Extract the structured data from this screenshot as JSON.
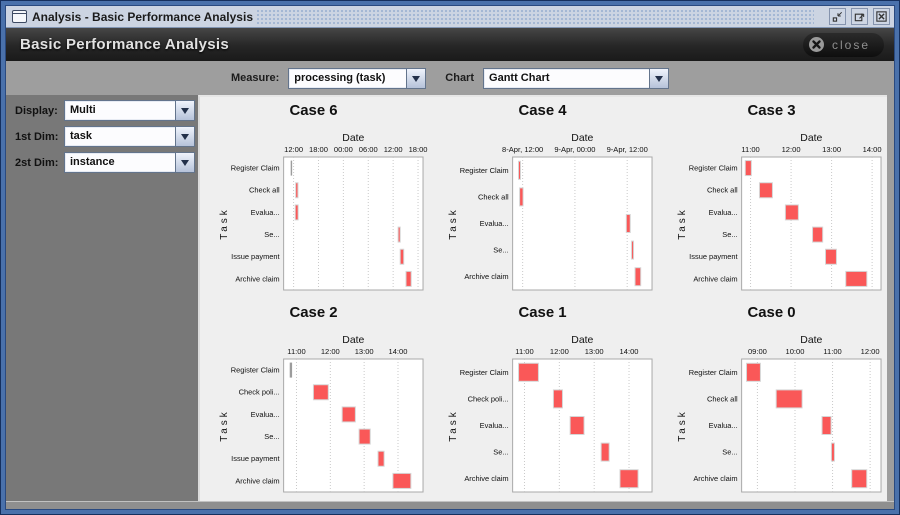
{
  "window": {
    "title": "Analysis - Basic Performance Analysis",
    "icons": {
      "app": "window-frame",
      "minimize": "iconify-arrow-to-small-square",
      "maximize": "arrow-to-large-square",
      "close": "boxed-x"
    }
  },
  "header": {
    "title": "Basic Performance Analysis",
    "close_label": "close",
    "close_icon": "circle-x"
  },
  "toolbar": {
    "measure_label": "Measure:",
    "measure_value": "processing (task)",
    "chart_label": "Chart",
    "chart_value": "Gantt Chart"
  },
  "sidebar": {
    "fields": [
      {
        "label": "Display:",
        "value": "Multi"
      },
      {
        "label": "1st Dim:",
        "value": "task"
      },
      {
        "label": "2st Dim:",
        "value": "instance"
      }
    ]
  },
  "colors": {
    "bar_red": "#FA5858",
    "bar_border": "#d6d6d6",
    "bar_gray": "#9c9c9c",
    "grid_line": "#c9c9c9",
    "plot_border": "#a8a8a8",
    "accent_blue": "#4a71ab"
  },
  "chart_data": [
    {
      "type": "gantt",
      "title": "Case 6",
      "xlabel": "Date",
      "ylabel": "Task",
      "x_unit": "hours-from-day1-00:00",
      "x_domain": [
        9.6,
        43.2
      ],
      "ticks": [
        {
          "v": 12,
          "label": "12:00"
        },
        {
          "v": 18,
          "label": "18:00"
        },
        {
          "v": 24,
          "label": "00:00"
        },
        {
          "v": 30,
          "label": "06:00"
        },
        {
          "v": 36,
          "label": "12:00"
        },
        {
          "v": 42,
          "label": "18:00"
        }
      ],
      "tasks": [
        "Register Claim",
        "Check all",
        "Evalua...",
        "Se...",
        "Issue payment",
        "Archive claim"
      ],
      "bars": [
        {
          "task": 0,
          "start": 11.3,
          "end": 11.65,
          "style": "gray"
        },
        {
          "task": 1,
          "start": 12.5,
          "end": 13.05,
          "style": "red"
        },
        {
          "task": 2,
          "start": 12.4,
          "end": 13.1,
          "style": "red"
        },
        {
          "task": 3,
          "start": 37.2,
          "end": 37.7,
          "style": "red"
        },
        {
          "task": 4,
          "start": 37.7,
          "end": 38.55,
          "style": "red"
        },
        {
          "task": 5,
          "start": 39.1,
          "end": 40.35,
          "style": "red"
        }
      ]
    },
    {
      "type": "gantt",
      "title": "Case 4",
      "xlabel": "Date",
      "ylabel": "Task",
      "x_unit": "hours-from-8-Apr-00:00",
      "x_domain": [
        9.7,
        41.7
      ],
      "ticks": [
        {
          "v": 12,
          "label": "8-Apr, 12:00"
        },
        {
          "v": 24,
          "label": "9-Apr, 00:00"
        },
        {
          "v": 36,
          "label": "9-Apr, 12:00"
        }
      ],
      "tasks": [
        "Register Claim",
        "Check all",
        "Evalua...",
        "Se...",
        "Archive claim"
      ],
      "bars": [
        {
          "task": 0,
          "start": 11.05,
          "end": 11.35,
          "style": "red"
        },
        {
          "task": 1,
          "start": 11.3,
          "end": 12.1,
          "style": "red"
        },
        {
          "task": 2,
          "start": 35.8,
          "end": 36.7,
          "style": "red"
        },
        {
          "task": 3,
          "start": 37.0,
          "end": 37.35,
          "style": "red"
        },
        {
          "task": 4,
          "start": 37.8,
          "end": 39.1,
          "style": "red"
        }
      ]
    },
    {
      "type": "gantt",
      "title": "Case 3",
      "xlabel": "Date",
      "ylabel": "Task",
      "x_unit": "hours",
      "x_domain": [
        10.78,
        14.22
      ],
      "ticks": [
        {
          "v": 11,
          "label": "11:00"
        },
        {
          "v": 12,
          "label": "12:00"
        },
        {
          "v": 13,
          "label": "13:00"
        },
        {
          "v": 14,
          "label": "14:00"
        }
      ],
      "tasks": [
        "Register Claim",
        "Check all",
        "Evalua...",
        "Se...",
        "Issue payment",
        "Archive claim"
      ],
      "bars": [
        {
          "task": 0,
          "start": 10.87,
          "end": 11.02,
          "style": "red"
        },
        {
          "task": 1,
          "start": 11.22,
          "end": 11.54,
          "style": "red"
        },
        {
          "task": 2,
          "start": 11.86,
          "end": 12.18,
          "style": "red"
        },
        {
          "task": 3,
          "start": 12.53,
          "end": 12.78,
          "style": "red"
        },
        {
          "task": 4,
          "start": 12.85,
          "end": 13.12,
          "style": "red"
        },
        {
          "task": 5,
          "start": 13.35,
          "end": 13.87,
          "style": "red"
        }
      ]
    },
    {
      "type": "gantt",
      "title": "Case 2",
      "xlabel": "Date",
      "ylabel": "Task",
      "x_unit": "hours",
      "x_domain": [
        10.62,
        14.74
      ],
      "ticks": [
        {
          "v": 11,
          "label": "11:00"
        },
        {
          "v": 12,
          "label": "12:00"
        },
        {
          "v": 13,
          "label": "13:00"
        },
        {
          "v": 14,
          "label": "14:00"
        }
      ],
      "tasks": [
        "Register Claim",
        "Check poli...",
        "Evalua...",
        "Se...",
        "Issue payment",
        "Archive claim"
      ],
      "bars": [
        {
          "task": 0,
          "start": 10.8,
          "end": 10.87,
          "style": "gray"
        },
        {
          "task": 1,
          "start": 11.5,
          "end": 11.94,
          "style": "red"
        },
        {
          "task": 2,
          "start": 12.35,
          "end": 12.74,
          "style": "red"
        },
        {
          "task": 3,
          "start": 12.85,
          "end": 13.18,
          "style": "red"
        },
        {
          "task": 4,
          "start": 13.41,
          "end": 13.59,
          "style": "red"
        },
        {
          "task": 5,
          "start": 13.85,
          "end": 14.38,
          "style": "red"
        }
      ]
    },
    {
      "type": "gantt",
      "title": "Case 1",
      "xlabel": "Date",
      "ylabel": "Task",
      "x_unit": "hours",
      "x_domain": [
        10.66,
        14.66
      ],
      "ticks": [
        {
          "v": 11,
          "label": "11:00"
        },
        {
          "v": 12,
          "label": "12:00"
        },
        {
          "v": 13,
          "label": "13:00"
        },
        {
          "v": 14,
          "label": "14:00"
        }
      ],
      "tasks": [
        "Register Claim",
        "Check poli...",
        "Evalua...",
        "Se...",
        "Archive claim"
      ],
      "bars": [
        {
          "task": 0,
          "start": 10.83,
          "end": 11.4,
          "style": "red"
        },
        {
          "task": 1,
          "start": 11.83,
          "end": 12.09,
          "style": "red"
        },
        {
          "task": 2,
          "start": 12.31,
          "end": 12.71,
          "style": "red"
        },
        {
          "task": 3,
          "start": 13.2,
          "end": 13.43,
          "style": "red"
        },
        {
          "task": 4,
          "start": 13.74,
          "end": 14.26,
          "style": "red"
        }
      ]
    },
    {
      "type": "gantt",
      "title": "Case 0",
      "xlabel": "Date",
      "ylabel": "Task",
      "x_unit": "hours",
      "x_domain": [
        8.58,
        12.29
      ],
      "ticks": [
        {
          "v": 9,
          "label": "09:00"
        },
        {
          "v": 10,
          "label": "10:00"
        },
        {
          "v": 11,
          "label": "11:00"
        },
        {
          "v": 12,
          "label": "12:00"
        }
      ],
      "tasks": [
        "Register Claim",
        "Check all",
        "Evalua...",
        "Se...",
        "Archive claim"
      ],
      "bars": [
        {
          "task": 0,
          "start": 8.71,
          "end": 9.08,
          "style": "red"
        },
        {
          "task": 1,
          "start": 9.5,
          "end": 10.19,
          "style": "red"
        },
        {
          "task": 2,
          "start": 10.72,
          "end": 10.96,
          "style": "red"
        },
        {
          "task": 3,
          "start": 10.97,
          "end": 11.05,
          "style": "red"
        },
        {
          "task": 4,
          "start": 11.51,
          "end": 11.91,
          "style": "red"
        }
      ]
    }
  ]
}
